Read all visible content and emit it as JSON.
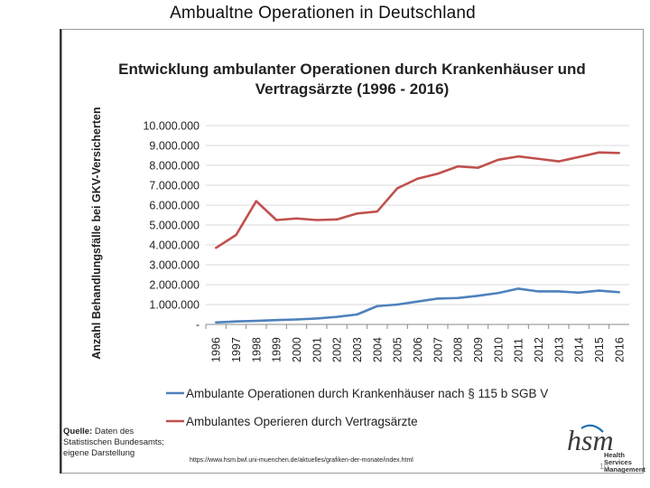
{
  "slide": {
    "title": "Ambualtne Operationen in Deutschland",
    "page_number": "10"
  },
  "chart_data": {
    "type": "line",
    "title_line1": "Entwicklung ambulanter Operationen durch Krankenhäuser und",
    "title_line2": "Vertragsärzte (1996 - 2016)",
    "ylabel": "Anzahl Behandlungsfälle bei GKV-Versicherten",
    "xlabel": "",
    "ylim": [
      0,
      10000000
    ],
    "y_ticks": [
      0,
      1000000,
      2000000,
      3000000,
      4000000,
      5000000,
      6000000,
      7000000,
      8000000,
      9000000,
      10000000
    ],
    "y_tick_labels": [
      "-",
      "1.000.000",
      "2.000.000",
      "3.000.000",
      "4.000.000",
      "5.000.000",
      "6.000.000",
      "7.000.000",
      "8.000.000",
      "9.000.000",
      "10.000.000"
    ],
    "categories": [
      "1996",
      "1997",
      "1998",
      "1999",
      "2000",
      "2001",
      "2002",
      "2003",
      "2004",
      "2005",
      "2006",
      "2007",
      "2008",
      "2009",
      "2010",
      "2011",
      "2012",
      "2013",
      "2014",
      "2015",
      "2016"
    ],
    "series": [
      {
        "name": "Ambulante Operationen durch Krankenhäuser nach § 115 b SGB V",
        "color": "#4f81bd",
        "values": [
          100000,
          150000,
          180000,
          220000,
          250000,
          300000,
          380000,
          500000,
          920000,
          1000000,
          1150000,
          1300000,
          1330000,
          1440000,
          1580000,
          1800000,
          1660000,
          1660000,
          1600000,
          1700000,
          1620000
        ]
      },
      {
        "name": "Ambulantes Operieren durch Vertragsärzte",
        "color": "#c0504d",
        "values": [
          3850000,
          4500000,
          6200000,
          5250000,
          5330000,
          5250000,
          5280000,
          5580000,
          5680000,
          6850000,
          7330000,
          7580000,
          7950000,
          7880000,
          8280000,
          8450000,
          8330000,
          8200000,
          8420000,
          8650000,
          8620000
        ]
      }
    ],
    "legend_position": "bottom"
  },
  "source": {
    "label": "Quelle:",
    "text_line1": " Daten des",
    "text_line2": "Statistischen Bundesamts;",
    "text_line3": "eigene Darstellung"
  },
  "url": "https://www.hsm.bwl.uni-muenchen.de/aktuelles/grafiken-der-monate/index.html",
  "logo": {
    "mark": "hsm",
    "line1": "Health Services",
    "line2": "Management",
    "accent_color": "#1f6fb4"
  }
}
